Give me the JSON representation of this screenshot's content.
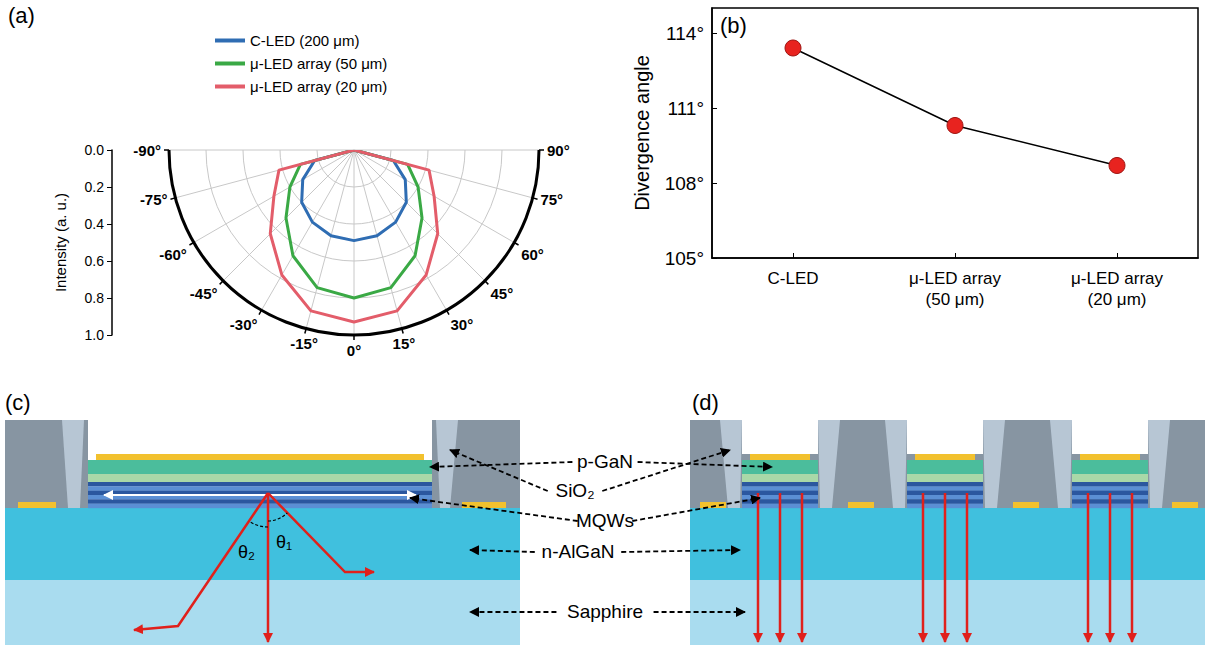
{
  "chart_data": [
    {
      "panel": "(a)",
      "type": "polar",
      "legend": "top",
      "grid": true,
      "x": [
        -90,
        -75,
        -60,
        -45,
        -30,
        -15,
        0,
        15,
        30,
        45,
        60,
        75,
        90
      ],
      "xlim": [
        -90,
        90
      ],
      "xticks": [
        {
          "value": -90,
          "label": "-90°"
        },
        {
          "value": -75,
          "label": "-75°"
        },
        {
          "value": -60,
          "label": "-60°"
        },
        {
          "value": -45,
          "label": "-45°"
        },
        {
          "value": -30,
          "label": "-30°"
        },
        {
          "value": -15,
          "label": "-15°"
        },
        {
          "value": 0,
          "label": "0°"
        },
        {
          "value": 15,
          "label": "15°"
        },
        {
          "value": 30,
          "label": "30°"
        },
        {
          "value": 45,
          "label": "45°"
        },
        {
          "value": 60,
          "label": "60°"
        },
        {
          "value": 75,
          "label": "75°"
        },
        {
          "value": 90,
          "label": "90°"
        }
      ],
      "ylabel": "Intensity (a. u.)",
      "ylim": [
        0,
        1
      ],
      "yticks": [
        {
          "value": 0,
          "label": "0.0"
        },
        0.2,
        0.4,
        0.6,
        0.8,
        {
          "value": 1,
          "label": "1.0"
        }
      ],
      "series": [
        {
          "name": "C-LED (200 μm)",
          "color": "#2f6db3",
          "values": [
            0,
            0.22,
            0.32,
            0.4,
            0.45,
            0.48,
            0.49,
            0.48,
            0.45,
            0.4,
            0.32,
            0.22,
            0
          ]
        },
        {
          "name": "μ-LED array (50 μm)",
          "color": "#3aa945",
          "values": [
            0,
            0.3,
            0.4,
            0.52,
            0.66,
            0.77,
            0.8,
            0.77,
            0.66,
            0.52,
            0.4,
            0.3,
            0
          ]
        },
        {
          "name": "μ-LED array (20 μm)",
          "color": "#e35d6a",
          "values": [
            0,
            0.42,
            0.5,
            0.64,
            0.78,
            0.9,
            0.93,
            0.9,
            0.78,
            0.64,
            0.5,
            0.42,
            0
          ]
        }
      ]
    },
    {
      "panel": "(b)",
      "type": "line",
      "grid": false,
      "categories": [
        "C-LED",
        "μ-LED array (50 μm)",
        "μ-LED array (20 μm)"
      ],
      "values": [
        113.4,
        110.3,
        108.7
      ],
      "color": "#e8231f",
      "marker": "circle",
      "ylabel": "Divergence angle",
      "ylim": [
        105,
        115
      ],
      "yticks": [
        {
          "value": 105,
          "label": "105°"
        },
        {
          "value": 108,
          "label": "108°"
        },
        {
          "value": 111,
          "label": "111°"
        },
        {
          "value": 114,
          "label": "114°"
        }
      ]
    }
  ],
  "diagrams": [
    {
      "panel": "(c)",
      "angle_labels": [
        "θ₁",
        "θ₂"
      ]
    },
    {
      "panel": "(d)"
    }
  ],
  "layer_labels": [
    "p-GaN",
    "SiO₂",
    "MQWs",
    "n-AlGaN",
    "Sapphire"
  ]
}
